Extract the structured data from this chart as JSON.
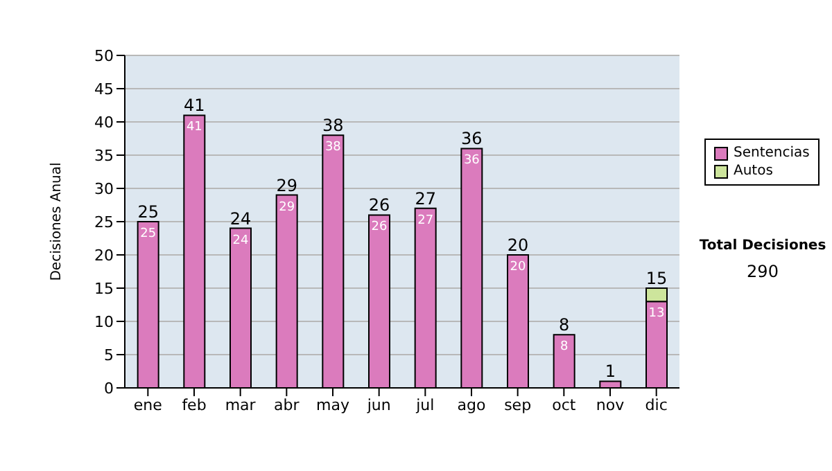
{
  "chart_data": {
    "type": "bar",
    "stacked": true,
    "ylabel": "Decisiones Anual",
    "categories": [
      "ene",
      "feb",
      "mar",
      "abr",
      "may",
      "jun",
      "jul",
      "ago",
      "sep",
      "oct",
      "nov",
      "dic"
    ],
    "series": [
      {
        "name": "Sentencias",
        "color": "#db7bbd",
        "values": [
          25,
          41,
          24,
          29,
          38,
          26,
          27,
          36,
          20,
          8,
          1,
          13
        ],
        "value_labels": [
          "25",
          "41",
          "24",
          "29",
          "38",
          "26",
          "27",
          "36",
          "20",
          "8",
          null,
          "13"
        ]
      },
      {
        "name": "Autos",
        "color": "#cde59c",
        "values": [
          null,
          null,
          null,
          null,
          null,
          null,
          null,
          null,
          null,
          null,
          null,
          2
        ]
      }
    ],
    "totals": [
      "25",
      "41",
      "24",
      "29",
      "38",
      "26",
      "27",
      "36",
      "20",
      "8",
      "1",
      "15"
    ],
    "ylim": [
      0,
      50
    ],
    "yticks": [
      0,
      5,
      10,
      15,
      20,
      25,
      30,
      35,
      40,
      45,
      50
    ],
    "grid": "y",
    "legend": "right",
    "annotations": [
      "Total Decisiones",
      "290"
    ]
  }
}
